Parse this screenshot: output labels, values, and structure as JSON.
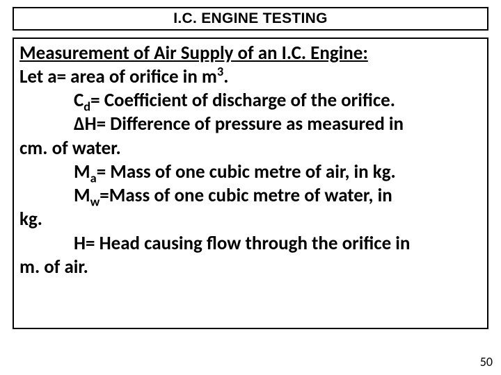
{
  "title": "I.C. ENGINE TESTING",
  "heading": "Measurement of Air Supply of an I.C. Engine:",
  "line_let": "Let a= area of orifice in m",
  "line_let_sup": "3",
  "line_let_tail": ".",
  "cd_pre": "C",
  "cd_sub": "d",
  "cd_post": "= Coefficient of discharge of the orifice.",
  "dh_line": "ΔH= Difference of pressure as measured in",
  "cm_water": "cm. of water.",
  "ma_pre": "M",
  "ma_sub": "a",
  "ma_post": "= Mass of one cubic metre of air, in kg.",
  "mw_pre": "M",
  "mw_sub": "w",
  "mw_post": "=Mass of one cubic metre of water, in",
  "kg_line": "kg.",
  "h_line": "H= Head causing flow through the orifice in",
  "m_air": "m. of air.",
  "page_number": "50"
}
